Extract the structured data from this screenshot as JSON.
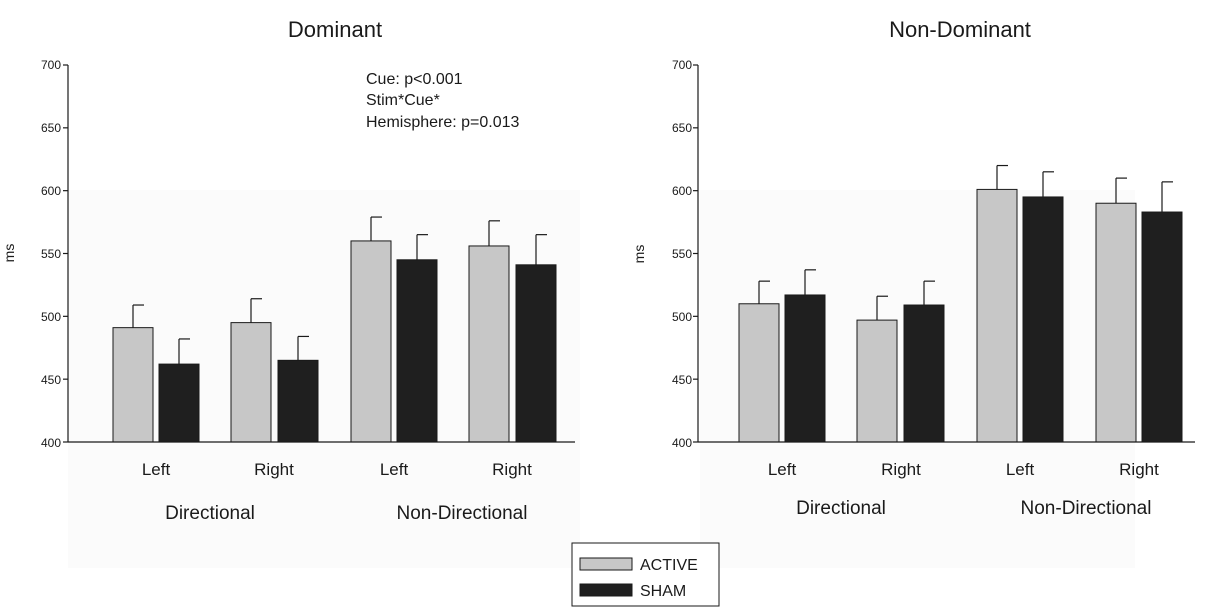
{
  "chart_data": [
    {
      "type": "bar",
      "title": "Dominant",
      "ylabel": "ms",
      "ylim": [
        400,
        700
      ],
      "yticks": [
        400,
        450,
        500,
        550,
        600,
        650,
        700
      ],
      "categories": [
        "Left",
        "Right",
        "Left",
        "Right"
      ],
      "groups": [
        "Directional",
        "Non-Directional"
      ],
      "series": [
        {
          "name": "ACTIVE",
          "color": "#c7c7c7",
          "values": [
            491,
            495,
            560,
            556
          ],
          "errors": [
            18,
            19,
            19,
            20
          ]
        },
        {
          "name": "SHAM",
          "color": "#1f1f1f",
          "values": [
            462,
            465,
            545,
            541
          ],
          "errors": [
            20,
            19,
            20,
            24
          ]
        }
      ],
      "annotations": [
        "Cue: p<0.001",
        "Stim*Cue*",
        "Hemisphere: p=0.013"
      ]
    },
    {
      "type": "bar",
      "title": "Non-Dominant",
      "ylabel": "ms",
      "ylim": [
        400,
        700
      ],
      "yticks": [
        400,
        450,
        500,
        550,
        600,
        650,
        700
      ],
      "categories": [
        "Left",
        "Right",
        "Left",
        "Right"
      ],
      "groups": [
        "Directional",
        "Non-Directional"
      ],
      "series": [
        {
          "name": "ACTIVE",
          "color": "#c7c7c7",
          "values": [
            510,
            497,
            601,
            590
          ],
          "errors": [
            18,
            19,
            19,
            20
          ]
        },
        {
          "name": "SHAM",
          "color": "#1f1f1f",
          "values": [
            517,
            509,
            595,
            583
          ],
          "errors": [
            20,
            19,
            20,
            24
          ]
        }
      ],
      "annotations": []
    }
  ],
  "legend": {
    "items": [
      {
        "label": "ACTIVE",
        "color": "#c7c7c7"
      },
      {
        "label": "SHAM",
        "color": "#1f1f1f"
      }
    ]
  }
}
